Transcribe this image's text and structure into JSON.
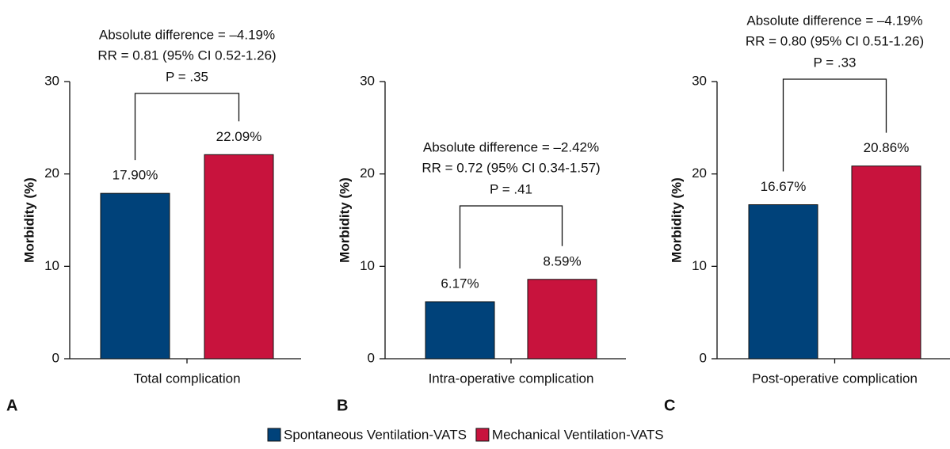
{
  "chart_data": [
    {
      "type": "bar",
      "panel_label": "A",
      "categories": [
        "Total complication"
      ],
      "y_label": "Morbidity (%)",
      "annotations": [
        "Absolute difference = –4.19%",
        "RR = 0.81 (95% CI 0.52-1.26)",
        "P = .35"
      ],
      "series": [
        {
          "values": [
            17.9
          ],
          "value_labels": [
            "17.90%"
          ]
        },
        {
          "values": [
            22.09
          ],
          "value_labels": [
            "22.09%"
          ]
        }
      ],
      "ylim": [
        0,
        30
      ],
      "yticks": [
        0,
        10,
        20,
        30
      ]
    },
    {
      "type": "bar",
      "panel_label": "B",
      "categories": [
        "Intra-operative complication"
      ],
      "y_label": "Morbidity (%)",
      "annotations": [
        "Absolute difference = –2.42%",
        "RR = 0.72 (95% CI 0.34-1.57)",
        "P = .41"
      ],
      "series": [
        {
          "values": [
            6.17
          ],
          "value_labels": [
            "6.17%"
          ]
        },
        {
          "values": [
            8.59
          ],
          "value_labels": [
            "8.59%"
          ]
        }
      ],
      "ylim": [
        0,
        30
      ],
      "yticks": [
        0,
        10,
        20,
        30
      ]
    },
    {
      "type": "bar",
      "panel_label": "C",
      "categories": [
        "Post-operative complication"
      ],
      "y_label": "Morbidity (%)",
      "annotations": [
        "Absolute difference = –4.19%",
        "RR = 0.80 (95% CI 0.51-1.26)",
        "P = .33"
      ],
      "series": [
        {
          "values": [
            16.67
          ],
          "value_labels": [
            "16.67%"
          ]
        },
        {
          "values": [
            20.86
          ],
          "value_labels": [
            "20.86%"
          ]
        }
      ],
      "ylim": [
        0,
        30
      ],
      "yticks": [
        0,
        10,
        20,
        30
      ]
    }
  ],
  "legend": [
    {
      "name": "Spontaneous Ventilation-VATS",
      "color": "#00427a"
    },
    {
      "name": "Mechanical Ventilation-VATS",
      "color": "#c8133d"
    }
  ]
}
